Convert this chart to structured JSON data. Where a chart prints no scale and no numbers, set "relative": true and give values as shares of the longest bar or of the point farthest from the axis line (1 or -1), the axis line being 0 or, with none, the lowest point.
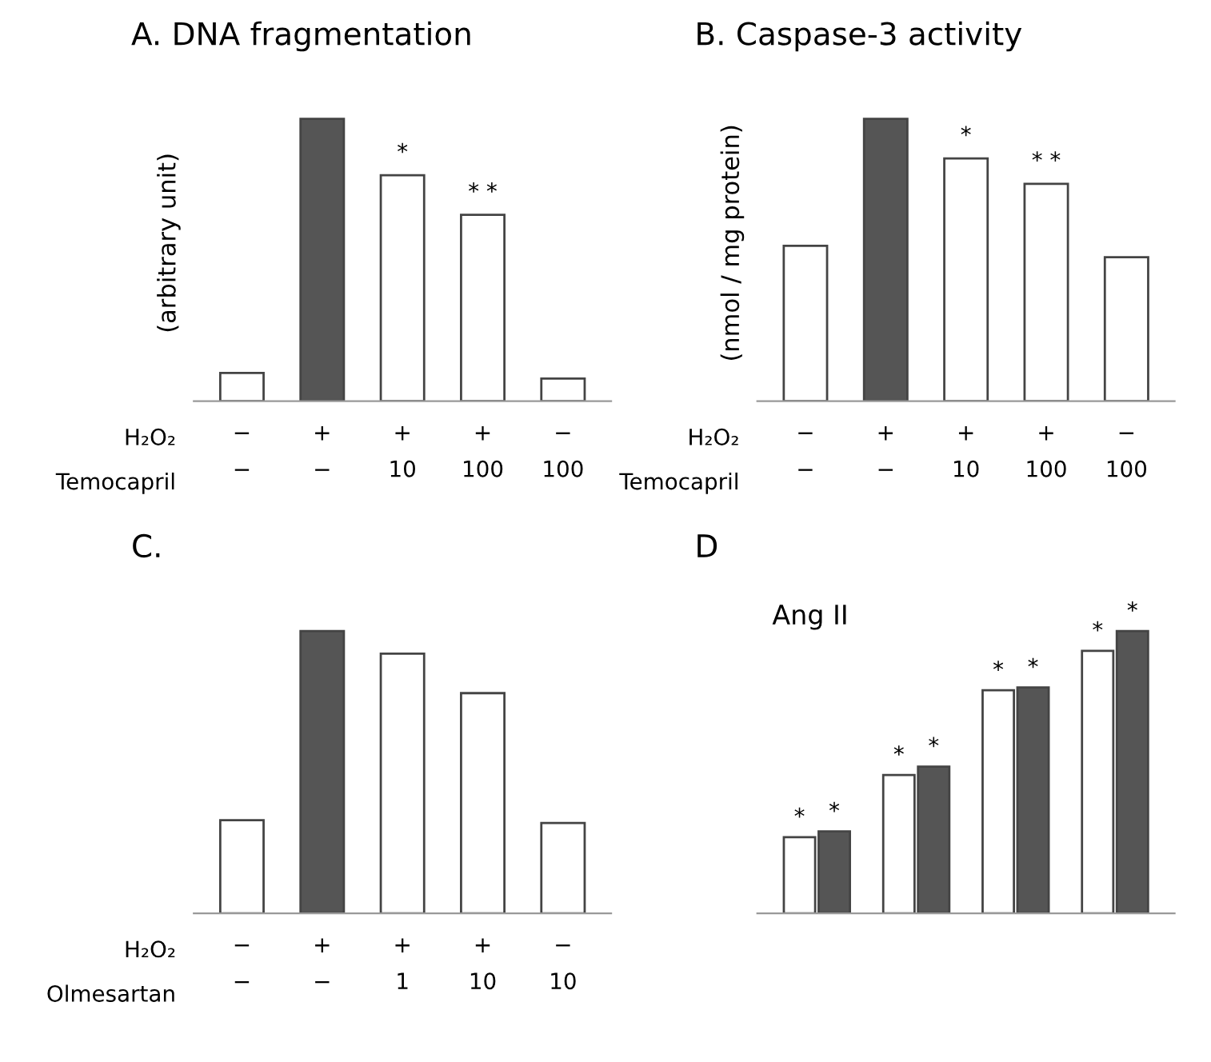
{
  "chart_data": [
    {
      "type": "bar",
      "title": "A. DNA fragmentation",
      "ylabel": "(arbitrary unit)",
      "relative": true,
      "categories": [
        "−\n−",
        "+\n−",
        "+\n10",
        "+\n100",
        "−\n100"
      ],
      "colors": [
        "#ffffff",
        "#555555",
        "#ffffff",
        "#ffffff",
        "#ffffff"
      ],
      "values": [
        0.1,
        1,
        0.8,
        0.66,
        0.08
      ],
      "annotations": [
        "H₂O₂",
        "Temocapril",
        "*",
        "* *"
      ]
    },
    {
      "type": "bar",
      "title": "B. Caspase-3 activity",
      "ylabel": "(nmol / mg protein)",
      "relative": true,
      "categories": [
        "−\n−",
        "+\n−",
        "+\n10",
        "+\n100",
        "−\n100"
      ],
      "colors": [
        "#ffffff",
        "#555555",
        "#ffffff",
        "#ffffff",
        "#ffffff"
      ],
      "values": [
        0.55,
        1,
        0.86,
        0.77,
        0.51
      ],
      "annotations": [
        "H₂O₂",
        "Temocapril",
        "*",
        "* *"
      ]
    },
    {
      "type": "bar",
      "title": "C.",
      "relative": true,
      "categories": [
        "−\n−",
        "+\n−",
        "+\n1",
        "+\n10",
        "−\n10"
      ],
      "colors": [
        "#ffffff",
        "#555555",
        "#ffffff",
        "#ffffff",
        "#ffffff"
      ],
      "values": [
        0.33,
        1,
        0.92,
        0.78,
        0.32
      ],
      "annotations": [
        "H₂O₂",
        "Olmesartan"
      ]
    },
    {
      "type": "bar",
      "title": "D",
      "relative": true,
      "categories": [
        null,
        null,
        null,
        null
      ],
      "series": [
        {
          "color": "#ffffff",
          "values": [
            0.27,
            0.49,
            0.79,
            0.93
          ]
        },
        {
          "color": "#555555",
          "values": [
            0.29,
            0.52,
            0.8,
            1
          ]
        }
      ],
      "annotations": [
        "Ang II",
        "*",
        "*",
        "*",
        "*",
        "*",
        "*",
        "*",
        "*"
      ]
    }
  ]
}
